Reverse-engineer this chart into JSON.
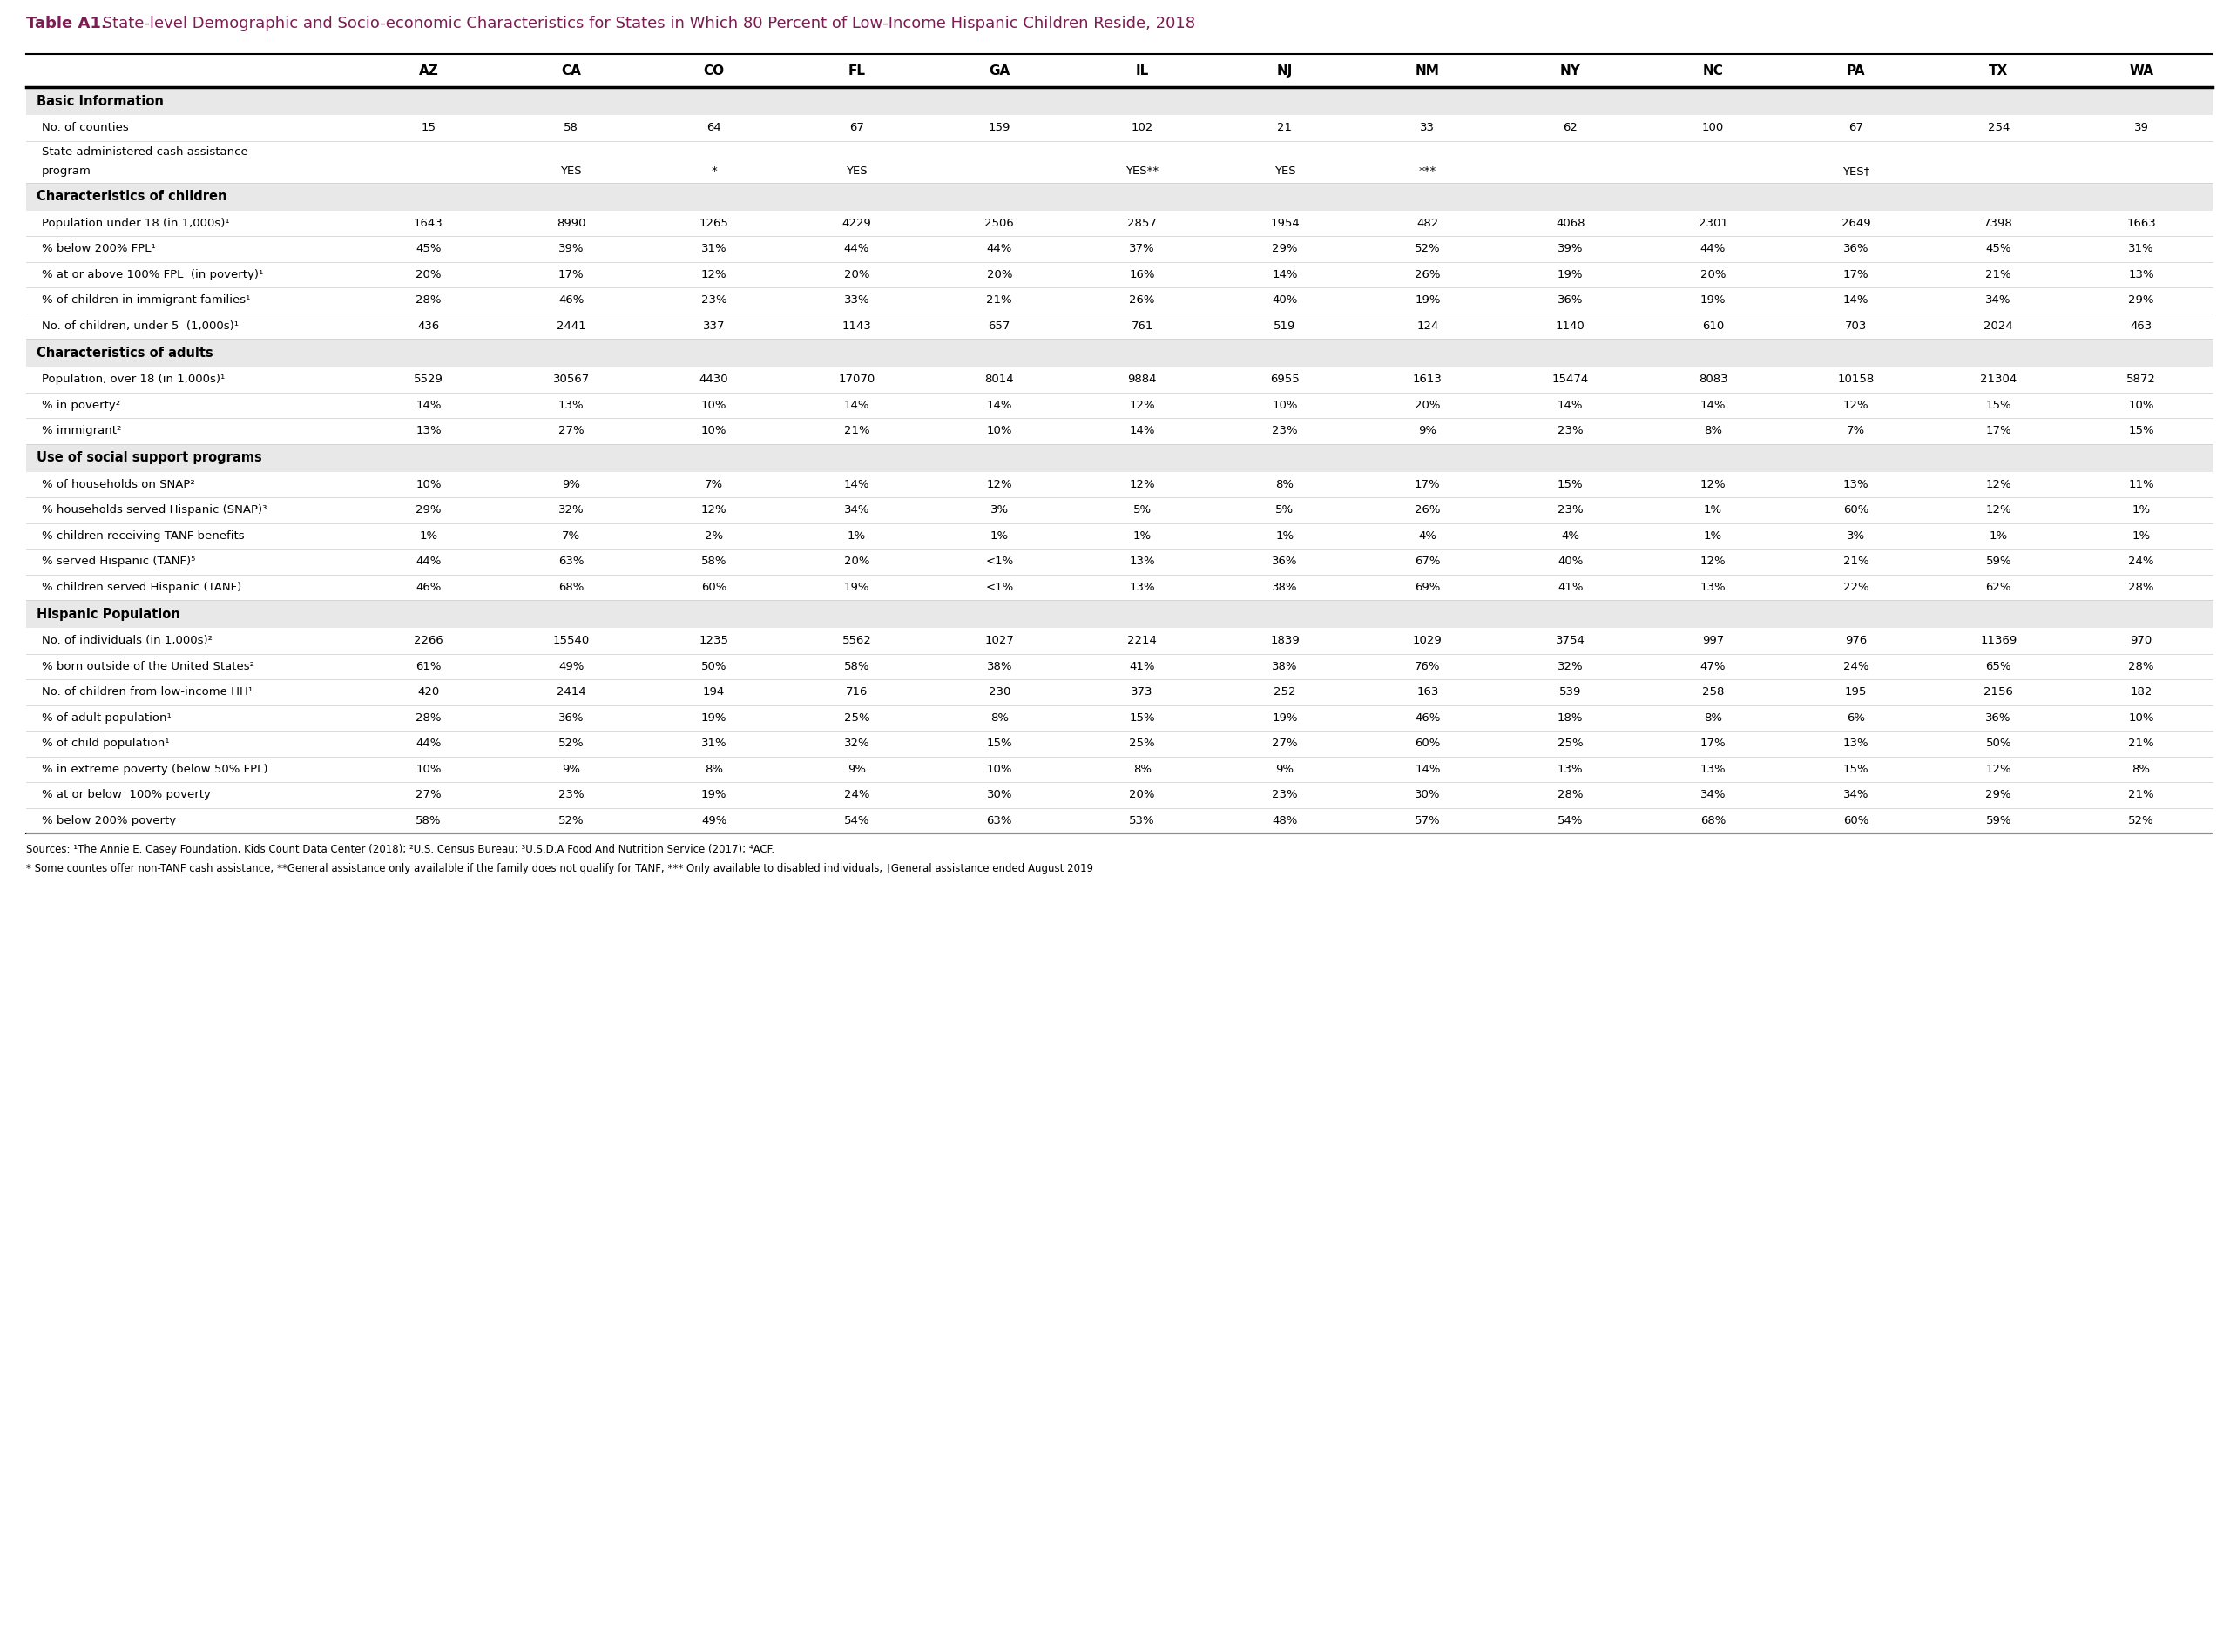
{
  "title_bold": "Table A1.",
  "title_rest": " State-level Demographic and Socio-economic Characteristics for States in Which 80 Percent of Low-Income Hispanic Children Reside, 2018",
  "columns": [
    "",
    "AZ",
    "CA",
    "CO",
    "FL",
    "GA",
    "IL",
    "NJ",
    "NM",
    "NY",
    "NC",
    "PA",
    "TX",
    "WA"
  ],
  "sections": [
    {
      "header": "Basic Information",
      "rows": [
        [
          "No. of counties",
          "15",
          "58",
          "64",
          "67",
          "159",
          "102",
          "21",
          "33",
          "62",
          "100",
          "67",
          "254",
          "39"
        ],
        [
          "State administered cash assistance\nprogram",
          "",
          "YES",
          "*",
          "YES",
          "",
          "YES**",
          "YES",
          "***",
          "",
          "",
          "YES†",
          "",
          ""
        ]
      ]
    },
    {
      "header": "Characteristics of children",
      "rows": [
        [
          "Population under 18 (in 1,000s)¹",
          "1643",
          "8990",
          "1265",
          "4229",
          "2506",
          "2857",
          "1954",
          "482",
          "4068",
          "2301",
          "2649",
          "7398",
          "1663"
        ],
        [
          "% below 200% FPL¹",
          "45%",
          "39%",
          "31%",
          "44%",
          "44%",
          "37%",
          "29%",
          "52%",
          "39%",
          "44%",
          "36%",
          "45%",
          "31%"
        ],
        [
          "% at or above 100% FPL  (in poverty)¹",
          "20%",
          "17%",
          "12%",
          "20%",
          "20%",
          "16%",
          "14%",
          "26%",
          "19%",
          "20%",
          "17%",
          "21%",
          "13%"
        ],
        [
          "% of children in immigrant families¹",
          "28%",
          "46%",
          "23%",
          "33%",
          "21%",
          "26%",
          "40%",
          "19%",
          "36%",
          "19%",
          "14%",
          "34%",
          "29%"
        ],
        [
          "No. of children, under 5  (1,000s)¹",
          "436",
          "2441",
          "337",
          "1143",
          "657",
          "761",
          "519",
          "124",
          "1140",
          "610",
          "703",
          "2024",
          "463"
        ]
      ]
    },
    {
      "header": "Characteristics of adults",
      "rows": [
        [
          "Population, over 18 (in 1,000s)¹",
          "5529",
          "30567",
          "4430",
          "17070",
          "8014",
          "9884",
          "6955",
          "1613",
          "15474",
          "8083",
          "10158",
          "21304",
          "5872"
        ],
        [
          "% in poverty²",
          "14%",
          "13%",
          "10%",
          "14%",
          "14%",
          "12%",
          "10%",
          "20%",
          "14%",
          "14%",
          "12%",
          "15%",
          "10%"
        ],
        [
          "% immigrant²",
          "13%",
          "27%",
          "10%",
          "21%",
          "10%",
          "14%",
          "23%",
          "9%",
          "23%",
          "8%",
          "7%",
          "17%",
          "15%"
        ]
      ]
    },
    {
      "header": "Use of social support programs",
      "rows": [
        [
          "% of households on SNAP²",
          "10%",
          "9%",
          "7%",
          "14%",
          "12%",
          "12%",
          "8%",
          "17%",
          "15%",
          "12%",
          "13%",
          "12%",
          "11%"
        ],
        [
          "% households served Hispanic (SNAP)³",
          "29%",
          "32%",
          "12%",
          "34%",
          "3%",
          "5%",
          "5%",
          "26%",
          "23%",
          "1%",
          "60%",
          "12%",
          "1%"
        ],
        [
          "% children receiving TANF benefits",
          "1%",
          "7%",
          "2%",
          "1%",
          "1%",
          "1%",
          "1%",
          "4%",
          "4%",
          "1%",
          "3%",
          "1%",
          "1%"
        ],
        [
          "% served Hispanic (TANF)⁵",
          "44%",
          "63%",
          "58%",
          "20%",
          "<1%",
          "13%",
          "36%",
          "67%",
          "40%",
          "12%",
          "21%",
          "59%",
          "24%"
        ],
        [
          "% children served Hispanic (TANF)",
          "46%",
          "68%",
          "60%",
          "19%",
          "<1%",
          "13%",
          "38%",
          "69%",
          "41%",
          "13%",
          "22%",
          "62%",
          "28%"
        ]
      ]
    },
    {
      "header": "Hispanic Population",
      "rows": [
        [
          "No. of individuals (in 1,000s)²",
          "2266",
          "15540",
          "1235",
          "5562",
          "1027",
          "2214",
          "1839",
          "1029",
          "3754",
          "997",
          "976",
          "11369",
          "970"
        ],
        [
          "% born outside of the United States²",
          "61%",
          "49%",
          "50%",
          "58%",
          "38%",
          "41%",
          "38%",
          "76%",
          "32%",
          "47%",
          "24%",
          "65%",
          "28%"
        ],
        [
          "No. of children from low-income HH¹",
          "420",
          "2414",
          "194",
          "716",
          "230",
          "373",
          "252",
          "163",
          "539",
          "258",
          "195",
          "2156",
          "182"
        ],
        [
          "% of adult population¹",
          "28%",
          "36%",
          "19%",
          "25%",
          "8%",
          "15%",
          "19%",
          "46%",
          "18%",
          "8%",
          "6%",
          "36%",
          "10%"
        ],
        [
          "% of child population¹",
          "44%",
          "52%",
          "31%",
          "32%",
          "15%",
          "25%",
          "27%",
          "60%",
          "25%",
          "17%",
          "13%",
          "50%",
          "21%"
        ],
        [
          "% in extreme poverty (below 50% FPL)",
          "10%",
          "9%",
          "8%",
          "9%",
          "10%",
          "8%",
          "9%",
          "14%",
          "13%",
          "13%",
          "15%",
          "12%",
          "8%"
        ],
        [
          "% at or below  100% poverty",
          "27%",
          "23%",
          "19%",
          "24%",
          "30%",
          "20%",
          "23%",
          "30%",
          "28%",
          "34%",
          "34%",
          "29%",
          "21%"
        ],
        [
          "% below 200% poverty",
          "58%",
          "52%",
          "49%",
          "54%",
          "63%",
          "53%",
          "48%",
          "57%",
          "54%",
          "68%",
          "60%",
          "59%",
          "52%"
        ]
      ]
    }
  ],
  "footnote_line1": "Sources: ¹The Annie E. Casey Foundation, Kids Count Data Center (2018); ²U.S. Census Bureau; ³U.S.D.A Food And Nutrition Service (2017); ⁴ACF.",
  "footnote_line2": "* Some countes offer non-TANF cash assistance; **General assistance only availalble if the family does not qualify for TANF; *** Only available to disabled individuals; †General assistance ended August 2019",
  "section_bg": "#e8e8e8",
  "title_color": "#7b1d52",
  "col_header_fontsize": 11,
  "section_header_fontsize": 10.5,
  "data_fontsize": 9.5,
  "title_bold_fontsize": 13,
  "title_rest_fontsize": 13
}
